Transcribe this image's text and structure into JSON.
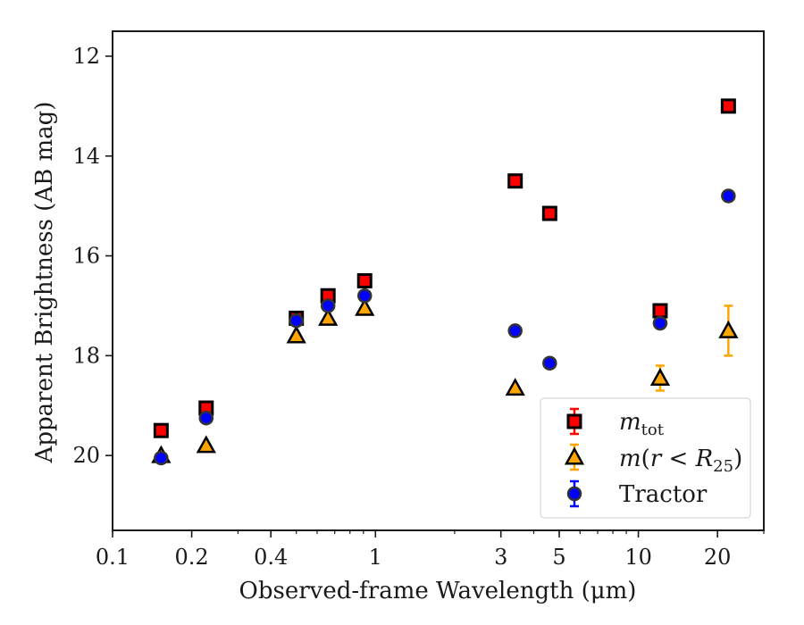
{
  "chart_data": {
    "type": "scatter",
    "x_scale": "log",
    "y_inverted": true,
    "xlim": [
      0.1,
      30
    ],
    "ylim": [
      21.5,
      11.5
    ],
    "xlabel": "Observed-frame Wavelength (μm)",
    "ylabel": "Apparent Brightness (AB mag)",
    "x_ticks": [
      {
        "value": 0.1,
        "label": "0.1"
      },
      {
        "value": 0.2,
        "label": "0.2"
      },
      {
        "value": 0.4,
        "label": "0.4"
      },
      {
        "value": 1,
        "label": "1"
      },
      {
        "value": 3,
        "label": "3"
      },
      {
        "value": 5,
        "label": "5"
      },
      {
        "value": 10,
        "label": "10"
      },
      {
        "value": 20,
        "label": "20"
      }
    ],
    "y_ticks": [
      {
        "value": 12,
        "label": "12"
      },
      {
        "value": 14,
        "label": "14"
      },
      {
        "value": 16,
        "label": "16"
      },
      {
        "value": 18,
        "label": "18"
      },
      {
        "value": 20,
        "label": "20"
      }
    ],
    "grid": false,
    "legend_position": "lower-right",
    "series": [
      {
        "name_text": "m_tot",
        "marker": "square",
        "fill": "#ff0000",
        "errcolor": "#ff0000",
        "x": [
          0.153,
          0.227,
          0.5,
          0.66,
          0.91,
          3.4,
          4.6,
          12.1,
          22.0
        ],
        "y": [
          19.5,
          19.05,
          17.25,
          16.8,
          16.5,
          14.5,
          15.15,
          17.1,
          13.0
        ],
        "yerr": [
          0.03,
          0.03,
          0.03,
          0.03,
          0.03,
          0.03,
          0.03,
          0.05,
          0.04
        ]
      },
      {
        "name_text": "m(r<R25)",
        "marker": "triangle",
        "fill": "#ffa500",
        "errcolor": "#ffa500",
        "x": [
          0.153,
          0.227,
          0.5,
          0.66,
          0.91,
          3.4,
          12.1,
          22.0
        ],
        "y": [
          20.0,
          19.8,
          17.6,
          17.25,
          17.05,
          18.65,
          18.45,
          17.5
        ],
        "yerr": [
          0.03,
          0.03,
          0.03,
          0.03,
          0.03,
          0.03,
          0.25,
          0.5
        ]
      },
      {
        "name_text": "Tractor",
        "marker": "circle",
        "fill": "#0000ff",
        "errcolor": "#0000ff",
        "x": [
          0.153,
          0.227,
          0.5,
          0.66,
          0.91,
          3.4,
          4.6,
          12.1,
          22.0
        ],
        "y": [
          20.05,
          19.25,
          17.3,
          17.0,
          16.8,
          17.5,
          18.15,
          17.35,
          14.8
        ],
        "yerr": [
          0.03,
          0.03,
          0.03,
          0.03,
          0.03,
          0.03,
          0.03,
          0.05,
          0.04
        ]
      }
    ]
  },
  "legend": {
    "mtot_base": "m",
    "mtot_sub": "tot",
    "mr_base": "m",
    "mr_open": "(",
    "mr_r": "r",
    "mr_lt": " < ",
    "mr_R": "R",
    "mr_sub": "25",
    "mr_close": ")",
    "tractor": "Tractor"
  },
  "colors": {
    "axis": "#1a1a1a",
    "edge": "#000000"
  }
}
